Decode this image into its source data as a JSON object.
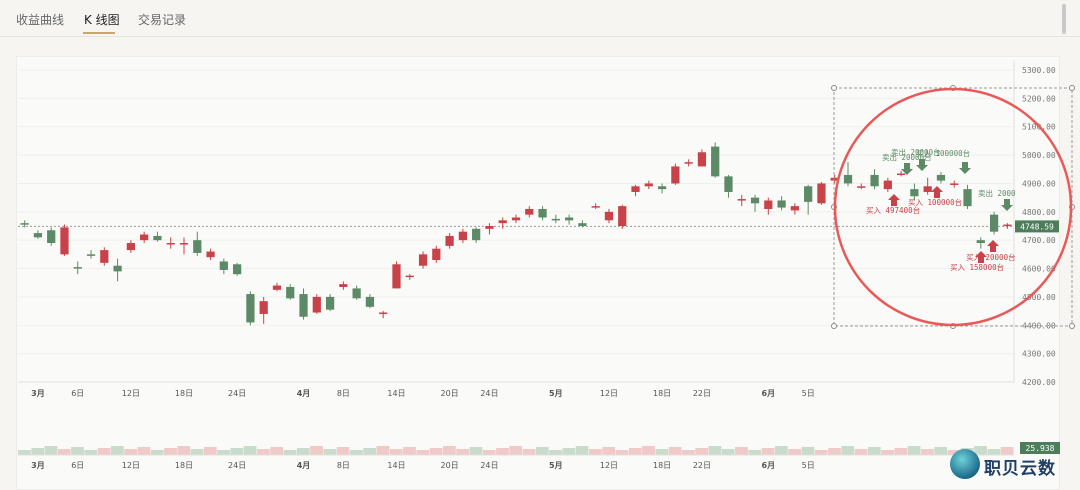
{
  "tabs": [
    {
      "label": "收益曲线",
      "active": false
    },
    {
      "label": "K 线图",
      "active": true
    },
    {
      "label": "交易记录",
      "active": false
    }
  ],
  "brand": {
    "text": "职贝云数"
  },
  "colors": {
    "up": "#c8424a",
    "down": "#5c8a66",
    "highlight": "#e85a5a",
    "grid": "#efefec"
  },
  "chart_data": {
    "type": "candlestick",
    "y_ticks": [
      "5300.00",
      "5200.00",
      "5100.00",
      "5000.00",
      "4900.00",
      "4800.00",
      "4700.00",
      "4600.00",
      "4500.00",
      "4400.00",
      "4300.00",
      "4200.00"
    ],
    "ylim": [
      4200,
      5300
    ],
    "x_ticks": [
      {
        "label": "3月",
        "i": 1,
        "bold": true
      },
      {
        "label": "6日",
        "i": 4
      },
      {
        "label": "12日",
        "i": 8
      },
      {
        "label": "18日",
        "i": 12
      },
      {
        "label": "24日",
        "i": 16
      },
      {
        "label": "4月",
        "i": 21,
        "bold": true
      },
      {
        "label": "8日",
        "i": 24
      },
      {
        "label": "14日",
        "i": 28
      },
      {
        "label": "20日",
        "i": 32
      },
      {
        "label": "24日",
        "i": 35
      },
      {
        "label": "5月",
        "i": 40,
        "bold": true
      },
      {
        "label": "12日",
        "i": 44
      },
      {
        "label": "18日",
        "i": 48
      },
      {
        "label": "22日",
        "i": 51
      },
      {
        "label": "6月",
        "i": 56,
        "bold": true
      },
      {
        "label": "5日",
        "i": 59
      }
    ],
    "candles": [
      [
        4760,
        4755,
        4770,
        4745
      ],
      [
        4725,
        4710,
        4735,
        4705
      ],
      [
        4735,
        4690,
        4745,
        4680
      ],
      [
        4650,
        4745,
        4755,
        4645
      ],
      [
        4605,
        4600,
        4625,
        4580
      ],
      [
        4650,
        4645,
        4665,
        4635
      ],
      [
        4620,
        4665,
        4675,
        4610
      ],
      [
        4610,
        4590,
        4635,
        4555
      ],
      [
        4665,
        4690,
        4700,
        4655
      ],
      [
        4700,
        4720,
        4730,
        4690
      ],
      [
        4715,
        4700,
        4730,
        4695
      ],
      [
        4690,
        4690,
        4710,
        4670
      ],
      [
        4685,
        4690,
        4710,
        4650
      ],
      [
        4700,
        4655,
        4730,
        4645
      ],
      [
        4640,
        4660,
        4670,
        4630
      ],
      [
        4625,
        4595,
        4635,
        4580
      ],
      [
        4615,
        4580,
        4620,
        4575
      ],
      [
        4510,
        4410,
        4520,
        4400
      ],
      [
        4440,
        4485,
        4500,
        4405
      ],
      [
        4525,
        4540,
        4550,
        4520
      ],
      [
        4535,
        4495,
        4545,
        4490
      ],
      [
        4510,
        4430,
        4530,
        4420
      ],
      [
        4445,
        4500,
        4510,
        4440
      ],
      [
        4500,
        4455,
        4510,
        4450
      ],
      [
        4535,
        4545,
        4555,
        4525
      ],
      [
        4530,
        4495,
        4540,
        4490
      ],
      [
        4500,
        4465,
        4510,
        4460
      ],
      [
        4440,
        4445,
        4450,
        4425
      ],
      [
        4530,
        4615,
        4625,
        4530
      ],
      [
        4570,
        4575,
        4580,
        4560
      ],
      [
        4610,
        4650,
        4660,
        4600
      ],
      [
        4630,
        4670,
        4680,
        4620
      ],
      [
        4680,
        4715,
        4725,
        4670
      ],
      [
        4700,
        4730,
        4740,
        4690
      ],
      [
        4740,
        4700,
        4745,
        4690
      ],
      [
        4740,
        4750,
        4760,
        4720
      ],
      [
        4760,
        4770,
        4780,
        4740
      ],
      [
        4770,
        4780,
        4790,
        4760
      ],
      [
        4790,
        4810,
        4820,
        4780
      ],
      [
        4810,
        4780,
        4820,
        4770
      ],
      [
        4775,
        4770,
        4790,
        4760
      ],
      [
        4780,
        4770,
        4790,
        4755
      ],
      [
        4760,
        4750,
        4770,
        4745
      ],
      [
        4820,
        4820,
        4830,
        4810
      ],
      [
        4770,
        4800,
        4810,
        4760
      ],
      [
        4750,
        4820,
        4825,
        4740
      ],
      [
        4870,
        4890,
        4895,
        4855
      ],
      [
        4890,
        4900,
        4910,
        4880
      ],
      [
        4890,
        4880,
        4900,
        4865
      ],
      [
        4900,
        4960,
        4970,
        4895
      ],
      [
        4975,
        4975,
        4985,
        4960
      ],
      [
        4960,
        5010,
        5020,
        4960
      ],
      [
        5030,
        4925,
        5045,
        4920
      ],
      [
        4925,
        4870,
        4930,
        4850
      ],
      [
        4845,
        4845,
        4860,
        4820
      ],
      [
        4850,
        4830,
        4860,
        4800
      ],
      [
        4810,
        4840,
        4850,
        4790
      ],
      [
        4840,
        4815,
        4855,
        4805
      ],
      [
        4805,
        4820,
        4830,
        4790
      ],
      [
        4890,
        4835,
        4895,
        4790
      ],
      [
        4830,
        4900,
        4905,
        4825
      ],
      [
        4910,
        4920,
        4930,
        4900
      ],
      [
        4930,
        4900,
        4975,
        4890
      ],
      [
        4890,
        4890,
        4900,
        4880
      ],
      [
        4930,
        4890,
        4950,
        4880
      ],
      [
        4880,
        4910,
        4920,
        4870
      ],
      [
        4935,
        4935,
        4945,
        4925
      ],
      [
        4880,
        4855,
        4900,
        4840
      ],
      [
        4870,
        4890,
        4920,
        4860
      ],
      [
        4930,
        4910,
        4940,
        4900
      ],
      [
        4900,
        4900,
        4910,
        4885
      ],
      [
        4880,
        4820,
        4895,
        4810
      ],
      [
        4700,
        4690,
        4710,
        4670
      ],
      [
        4790,
        4730,
        4800,
        4720
      ],
      [
        4750,
        4755,
        4760,
        4740
      ]
    ],
    "candle_indices": [
      0,
      1,
      2,
      3,
      4,
      5,
      6,
      7,
      8,
      9,
      10,
      11,
      12,
      13,
      14,
      15,
      16,
      17,
      18,
      19,
      20,
      21,
      22,
      23,
      24,
      25,
      26,
      27,
      28,
      29,
      30,
      31,
      32,
      33,
      34,
      35,
      36,
      37,
      38,
      39,
      40,
      41,
      42,
      43,
      44,
      45,
      46,
      47,
      48,
      49,
      50,
      51,
      52,
      53,
      54,
      55,
      56,
      57,
      58,
      59,
      60,
      61,
      62,
      63,
      64,
      65,
      66,
      67,
      68,
      69,
      70,
      71,
      72,
      73,
      74
    ],
    "last_price": "4748.59",
    "last_volume": "25.938",
    "annotations": [
      {
        "text": "卖出 20000台",
        "kind": "sell",
        "x": 882,
        "y": 160
      },
      {
        "text": "买入 100000台",
        "kind": "sell",
        "x": 916,
        "y": 156
      },
      {
        "text": "卖出 20000台",
        "kind": "sell",
        "x": 891,
        "y": 155
      },
      {
        "text": "买入 100000台",
        "kind": "buy",
        "x": 908,
        "y": 205
      },
      {
        "text": "买入 497400台",
        "kind": "buy",
        "x": 866,
        "y": 213
      },
      {
        "text": "卖出 2000",
        "kind": "sell",
        "x": 978,
        "y": 196
      },
      {
        "text": "买入 20000台",
        "kind": "buy",
        "x": 966,
        "y": 260
      },
      {
        "text": "买入 158000台",
        "kind": "buy",
        "x": 950,
        "y": 270
      }
    ]
  }
}
